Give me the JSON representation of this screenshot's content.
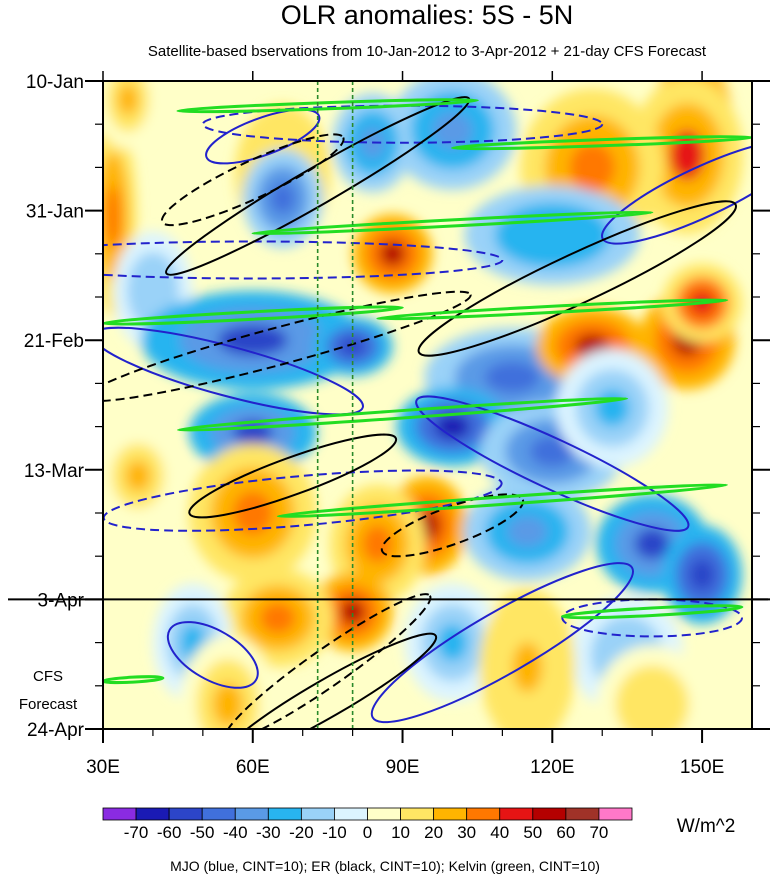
{
  "chart_data": {
    "type": "heatmap",
    "title": "OLR anomalies: 5S - 5N",
    "subtitle": "Satellite-based bservations from 10-Jan-2012 to 3-Apr-2012 + 21-day CFS Forecast",
    "x": {
      "label": "",
      "range": [
        30,
        160
      ],
      "ticks": [
        {
          "value": 30,
          "label": "30E"
        },
        {
          "value": 60,
          "label": "60E"
        },
        {
          "value": 90,
          "label": "90E"
        },
        {
          "value": 120,
          "label": "120E"
        },
        {
          "value": 150,
          "label": "150E"
        }
      ]
    },
    "y": {
      "label": "",
      "range": [
        "2012-01-10",
        "2012-04-24"
      ],
      "ticks": [
        {
          "value": "2012-01-10",
          "label": "10-Jan"
        },
        {
          "value": "2012-01-31",
          "label": "31-Jan"
        },
        {
          "value": "2012-02-21",
          "label": "21-Feb"
        },
        {
          "value": "2012-03-13",
          "label": "13-Mar"
        },
        {
          "value": "2012-04-03",
          "label": "3-Apr"
        },
        {
          "value": "2012-04-24",
          "label": "24-Apr"
        }
      ]
    },
    "observation_end": "2012-04-03",
    "forecast_label": "CFS\nForecast",
    "forecast_label_lines": [
      "CFS",
      "Forecast"
    ],
    "reference_longitudes": [
      73,
      80
    ],
    "units": "W/m^2",
    "colorbar": {
      "levels": [
        "-70",
        "-60",
        "-50",
        "-40",
        "-30",
        "-20",
        "-10",
        "0",
        "10",
        "20",
        "30",
        "40",
        "50",
        "60",
        "70"
      ],
      "colors": [
        "#8a2be2",
        "#1a1ab4",
        "#2c45c8",
        "#4070dc",
        "#5a9ae6",
        "#28b4f0",
        "#9ad2f8",
        "#dcf4ff",
        "#ffffc8",
        "#ffe664",
        "#ffb400",
        "#ff7800",
        "#e61414",
        "#b40000",
        "#a03228",
        "#ff78c8"
      ]
    },
    "footer": "MJO (blue, CINT=10); ER (black, CINT=10); Kelvin (green, CINT=10)",
    "series": [
      {
        "name": "MJO",
        "color": "#2222cc",
        "cint": 10
      },
      {
        "name": "ER",
        "color": "#000000",
        "cint": 10
      },
      {
        "name": "Kelvin",
        "color": "#22dd22",
        "cint": 10
      }
    ],
    "blobs": [
      {
        "lon": 148,
        "date": "2012-01-16",
        "value": 55,
        "w": 10,
        "h": 6
      },
      {
        "lon": 147,
        "date": "2012-01-22",
        "value": 40,
        "w": 14,
        "h": 8
      },
      {
        "lon": 128,
        "date": "2012-01-24",
        "value": 30,
        "w": 18,
        "h": 8
      },
      {
        "lon": 32,
        "date": "2012-02-01",
        "value": 30,
        "w": 6,
        "h": 10
      },
      {
        "lon": 66,
        "date": "2012-01-25",
        "value": 25,
        "w": 12,
        "h": 7
      },
      {
        "lon": 88,
        "date": "2012-02-07",
        "value": 55,
        "w": 10,
        "h": 4
      },
      {
        "lon": 66,
        "date": "2012-01-29",
        "value": -45,
        "w": 10,
        "h": 5
      },
      {
        "lon": 100,
        "date": "2012-01-18",
        "value": -35,
        "w": 16,
        "h": 6
      },
      {
        "lon": 84,
        "date": "2012-01-20",
        "value": -40,
        "w": 10,
        "h": 5
      },
      {
        "lon": 120,
        "date": "2012-02-04",
        "value": -30,
        "w": 22,
        "h": 5
      },
      {
        "lon": 40,
        "date": "2012-02-13",
        "value": -20,
        "w": 10,
        "h": 6
      },
      {
        "lon": 60,
        "date": "2012-02-21",
        "value": -55,
        "w": 28,
        "h": 5
      },
      {
        "lon": 80,
        "date": "2012-02-22",
        "value": -60,
        "w": 10,
        "h": 3
      },
      {
        "lon": 112,
        "date": "2012-02-27",
        "value": -50,
        "w": 22,
        "h": 5
      },
      {
        "lon": 128,
        "date": "2012-02-22",
        "value": 50,
        "w": 14,
        "h": 4
      },
      {
        "lon": 147,
        "date": "2012-02-21",
        "value": 55,
        "w": 12,
        "h": 5
      },
      {
        "lon": 150,
        "date": "2012-02-15",
        "value": 45,
        "w": 10,
        "h": 4
      },
      {
        "lon": 60,
        "date": "2012-03-07",
        "value": -55,
        "w": 16,
        "h": 4
      },
      {
        "lon": 100,
        "date": "2012-03-06",
        "value": -65,
        "w": 14,
        "h": 4
      },
      {
        "lon": 120,
        "date": "2012-03-10",
        "value": -45,
        "w": 18,
        "h": 5
      },
      {
        "lon": 37,
        "date": "2012-03-14",
        "value": 20,
        "w": 10,
        "h": 5
      },
      {
        "lon": 60,
        "date": "2012-03-20",
        "value": 35,
        "w": 16,
        "h": 7
      },
      {
        "lon": 95,
        "date": "2012-03-22",
        "value": 55,
        "w": 10,
        "h": 5
      },
      {
        "lon": 85,
        "date": "2012-03-25",
        "value": 30,
        "w": 12,
        "h": 6
      },
      {
        "lon": 115,
        "date": "2012-03-23",
        "value": -40,
        "w": 16,
        "h": 5
      },
      {
        "lon": 140,
        "date": "2012-03-25",
        "value": -55,
        "w": 14,
        "h": 5
      },
      {
        "lon": 150,
        "date": "2012-03-30",
        "value": -60,
        "w": 10,
        "h": 5
      },
      {
        "lon": 80,
        "date": "2012-04-05",
        "value": 55,
        "w": 10,
        "h": 4
      },
      {
        "lon": 65,
        "date": "2012-04-06",
        "value": 30,
        "w": 14,
        "h": 5
      },
      {
        "lon": 48,
        "date": "2012-04-10",
        "value": -25,
        "w": 10,
        "h": 6
      },
      {
        "lon": 100,
        "date": "2012-04-10",
        "value": -25,
        "w": 12,
        "h": 6
      },
      {
        "lon": 135,
        "date": "2012-04-12",
        "value": -20,
        "w": 14,
        "h": 6
      },
      {
        "lon": 115,
        "date": "2012-04-14",
        "value": 25,
        "w": 12,
        "h": 8
      },
      {
        "lon": 55,
        "date": "2012-04-20",
        "value": 20,
        "w": 12,
        "h": 7
      },
      {
        "lon": 140,
        "date": "2012-04-20",
        "value": 15,
        "w": 14,
        "h": 6
      },
      {
        "lon": 132,
        "date": "2012-03-03",
        "value": -25,
        "w": 14,
        "h": 6
      },
      {
        "lon": 35,
        "date": "2012-01-13",
        "value": 20,
        "w": 8,
        "h": 5
      }
    ],
    "contours": [
      {
        "series": "MJO",
        "style": "solid",
        "lon": 62,
        "date": "2012-01-19",
        "rx": 12,
        "ry": 3,
        "angle": -20
      },
      {
        "series": "MJO",
        "style": "solid",
        "lon": 150,
        "date": "2012-01-28",
        "rx": 22,
        "ry": 4,
        "angle": -25
      },
      {
        "series": "MJO",
        "style": "solid",
        "lon": 55,
        "date": "2012-02-26",
        "rx": 28,
        "ry": 4,
        "angle": 15
      },
      {
        "series": "MJO",
        "style": "solid",
        "lon": 120,
        "date": "2012-03-12",
        "rx": 30,
        "ry": 4,
        "angle": 25
      },
      {
        "series": "MJO",
        "style": "solid",
        "lon": 52,
        "date": "2012-04-12",
        "rx": 10,
        "ry": 4,
        "angle": 30
      },
      {
        "series": "MJO",
        "style": "solid",
        "lon": 110,
        "date": "2012-04-10",
        "rx": 30,
        "ry": 5,
        "angle": -30
      },
      {
        "series": "MJO",
        "style": "dashed",
        "lon": 90,
        "date": "2012-01-17",
        "rx": 40,
        "ry": 3,
        "angle": 0
      },
      {
        "series": "MJO",
        "style": "dashed",
        "lon": 60,
        "date": "2012-02-08",
        "rx": 50,
        "ry": 3,
        "angle": 0
      },
      {
        "series": "MJO",
        "style": "dashed",
        "lon": 70,
        "date": "2012-03-18",
        "rx": 40,
        "ry": 4,
        "angle": -5
      },
      {
        "series": "MJO",
        "style": "dashed",
        "lon": 140,
        "date": "2012-04-06",
        "rx": 18,
        "ry": 3,
        "angle": 0
      },
      {
        "series": "ER",
        "style": "solid",
        "lon": 73,
        "date": "2012-01-27",
        "rx": 35,
        "ry": 3,
        "angle": -30
      },
      {
        "series": "ER",
        "style": "solid",
        "lon": 125,
        "date": "2012-02-11",
        "rx": 35,
        "ry": 4,
        "angle": -25
      },
      {
        "series": "ER",
        "style": "solid",
        "lon": 68,
        "date": "2012-03-14",
        "rx": 22,
        "ry": 3,
        "angle": -20
      },
      {
        "series": "ER",
        "style": "solid",
        "lon": 75,
        "date": "2012-04-19",
        "rx": 25,
        "ry": 3,
        "angle": -30
      },
      {
        "series": "ER",
        "style": "dashed",
        "lon": 60,
        "date": "2012-01-26",
        "rx": 20,
        "ry": 3,
        "angle": -25
      },
      {
        "series": "ER",
        "style": "dashed",
        "lon": 65,
        "date": "2012-02-22",
        "rx": 40,
        "ry": 3,
        "angle": -15
      },
      {
        "series": "ER",
        "style": "dashed",
        "lon": 100,
        "date": "2012-03-22",
        "rx": 15,
        "ry": 3,
        "angle": -20
      },
      {
        "series": "ER",
        "style": "dashed",
        "lon": 75,
        "date": "2012-04-14",
        "rx": 25,
        "ry": 3,
        "angle": -35
      },
      {
        "series": "Kelvin",
        "style": "solid",
        "lon": 75,
        "date": "2012-01-14",
        "rx": 30,
        "ry": 0.5,
        "angle": -2
      },
      {
        "series": "Kelvin",
        "style": "solid",
        "lon": 130,
        "date": "2012-01-20",
        "rx": 30,
        "ry": 0.5,
        "angle": -2
      },
      {
        "series": "Kelvin",
        "style": "solid",
        "lon": 100,
        "date": "2012-02-02",
        "rx": 40,
        "ry": 0.5,
        "angle": -3
      },
      {
        "series": "Kelvin",
        "style": "solid",
        "lon": 60,
        "date": "2012-02-17",
        "rx": 30,
        "ry": 0.6,
        "angle": -3
      },
      {
        "series": "Kelvin",
        "style": "solid",
        "lon": 120,
        "date": "2012-02-16",
        "rx": 35,
        "ry": 0.5,
        "angle": -3
      },
      {
        "series": "Kelvin",
        "style": "solid",
        "lon": 90,
        "date": "2012-03-04",
        "rx": 45,
        "ry": 0.6,
        "angle": -4
      },
      {
        "series": "Kelvin",
        "style": "solid",
        "lon": 110,
        "date": "2012-03-18",
        "rx": 45,
        "ry": 0.6,
        "angle": -4
      },
      {
        "series": "Kelvin",
        "style": "solid",
        "lon": 140,
        "date": "2012-04-05",
        "rx": 18,
        "ry": 0.6,
        "angle": -3
      },
      {
        "series": "Kelvin",
        "style": "solid",
        "lon": 36,
        "date": "2012-04-16",
        "rx": 6,
        "ry": 0.4,
        "angle": -3
      }
    ]
  }
}
